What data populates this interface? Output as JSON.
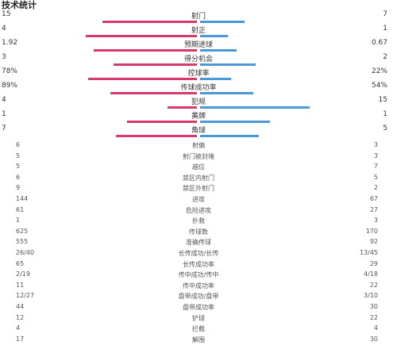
{
  "title": "技术统计",
  "colors": {
    "home": "#d9386f",
    "away": "#4a98d6"
  },
  "bar_stats": [
    {
      "label": "射门",
      "home": "15",
      "away": "7",
      "home_frac": 0.68,
      "away_frac": 0.32
    },
    {
      "label": "射正",
      "home": "4",
      "away": "1",
      "home_frac": 0.8,
      "away_frac": 0.2
    },
    {
      "label": "预期进球",
      "home": "1.92",
      "away": "0.67",
      "home_frac": 0.74,
      "away_frac": 0.26
    },
    {
      "label": "得分机会",
      "home": "3",
      "away": "2",
      "home_frac": 0.6,
      "away_frac": 0.4
    },
    {
      "label": "控球率",
      "home": "78%",
      "away": "22%",
      "home_frac": 0.78,
      "away_frac": 0.22
    },
    {
      "label": "传球成功率",
      "home": "89%",
      "away": "54%",
      "home_frac": 0.62,
      "away_frac": 0.38
    },
    {
      "label": "犯规",
      "home": "4",
      "away": "15",
      "home_frac": 0.21,
      "away_frac": 0.79
    },
    {
      "label": "黄牌",
      "home": "1",
      "away": "1",
      "home_frac": 0.5,
      "away_frac": 0.5
    },
    {
      "label": "角球",
      "home": "7",
      "away": "5",
      "home_frac": 0.58,
      "away_frac": 0.42
    }
  ],
  "table_stats": [
    {
      "label": "射偏",
      "home": "6",
      "away": "3"
    },
    {
      "label": "射门被封堵",
      "home": "5",
      "away": "3"
    },
    {
      "label": "越位",
      "home": "5",
      "away": "7"
    },
    {
      "label": "禁区内射门",
      "home": "6",
      "away": "5"
    },
    {
      "label": "禁区外射门",
      "home": "9",
      "away": "2"
    },
    {
      "label": "进攻",
      "home": "144",
      "away": "67"
    },
    {
      "label": "危险进攻",
      "home": "61",
      "away": "27"
    },
    {
      "label": "扑救",
      "home": "1",
      "away": "3"
    },
    {
      "label": "传球数",
      "home": "625",
      "away": "170"
    },
    {
      "label": "准确传球",
      "home": "555",
      "away": "92"
    },
    {
      "label": "长传成功/长传",
      "home": "26/40",
      "away": "13/45"
    },
    {
      "label": "长传成功率",
      "home": "65",
      "away": "29"
    },
    {
      "label": "传中成功/传中",
      "home": "2/19",
      "away": "4/18"
    },
    {
      "label": "传中成功率",
      "home": "11",
      "away": "22"
    },
    {
      "label": "盘带成功/盘带",
      "home": "12/27",
      "away": "3/10"
    },
    {
      "label": "盘带成功率",
      "home": "44",
      "away": "30"
    },
    {
      "label": "铲球",
      "home": "12",
      "away": "22"
    },
    {
      "label": "拦截",
      "home": "4",
      "away": "4"
    },
    {
      "label": "解围",
      "home": "17",
      "away": "30"
    }
  ]
}
